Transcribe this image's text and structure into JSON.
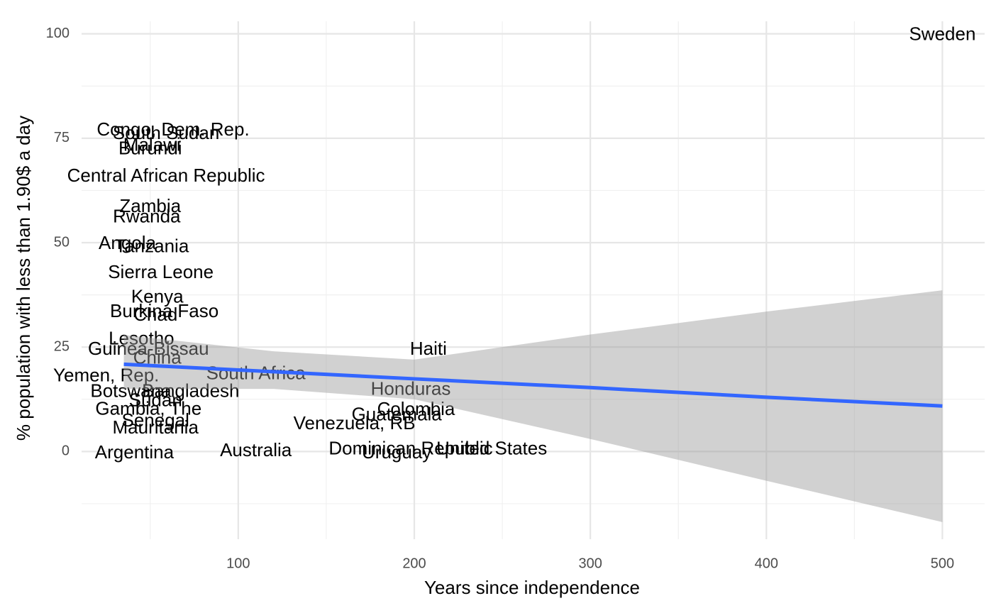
{
  "chart_data": {
    "type": "text-scatter",
    "x_label": "Years since independence",
    "y_label": "% population with less than 1.90$ a day",
    "xlim": [
      11,
      524
    ],
    "ylim": [
      -21,
      103
    ],
    "xticks": [
      100,
      200,
      300,
      400,
      500
    ],
    "yticks": [
      0,
      25,
      50,
      75,
      100
    ],
    "grid": true,
    "text_color": "#000000",
    "labels": [
      "Sweden",
      "Haiti",
      "Honduras",
      "Colombia",
      "Guatemala",
      "Venezuela, RB",
      "Dominican Republic",
      "United States",
      "Uruguay",
      "Australia",
      "South Africa",
      "Central African Republic",
      "Congo, Dem. Rep.",
      "South Sudan",
      "Malawi",
      "Burundi",
      "Zambia",
      "Rwanda",
      "Angola",
      "Tanzania",
      "Sierra Leone",
      "Kenya",
      "Burkina Faso",
      "Chad",
      "Lesotho",
      "Guinea-Bissau",
      "China",
      "Yemen, Rep.",
      "Bangladesh",
      "Botswana",
      "Sudan",
      "Gambia, The",
      "Senegal",
      "Mauritania",
      "Argentina"
    ],
    "x": [
      500,
      208,
      198,
      201,
      190,
      166,
      198,
      244,
      190,
      110,
      110,
      59,
      63,
      59,
      51,
      50,
      50,
      48,
      37,
      51,
      56,
      54,
      58,
      53,
      45,
      49,
      54,
      25,
      73,
      39,
      53,
      49,
      53,
      53,
      41
    ],
    "values": [
      99.7,
      24.3,
      14.7,
      9.9,
      8.6,
      6.5,
      0.5,
      0.5,
      -0.5,
      0,
      18.5,
      65.8,
      76.8,
      76,
      73.2,
      72.3,
      58.5,
      56,
      49.6,
      48.9,
      42.7,
      36.8,
      33.3,
      32.5,
      26.8,
      24.3,
      22.2,
      18,
      14.2,
      14.2,
      12,
      10,
      7.2,
      5.5,
      -0.5
    ],
    "fit": {
      "color": "#3366ff",
      "band_color": "#999999",
      "x": [
        35,
        120,
        200,
        300,
        400,
        500
      ],
      "values": [
        20.9,
        19.1,
        17.4,
        15.3,
        13,
        10.9
      ],
      "lower": [
        15,
        15,
        12.5,
        3,
        -7,
        -16.9
      ],
      "upper": [
        27.9,
        24,
        22,
        28,
        33.5,
        38.6
      ]
    }
  }
}
